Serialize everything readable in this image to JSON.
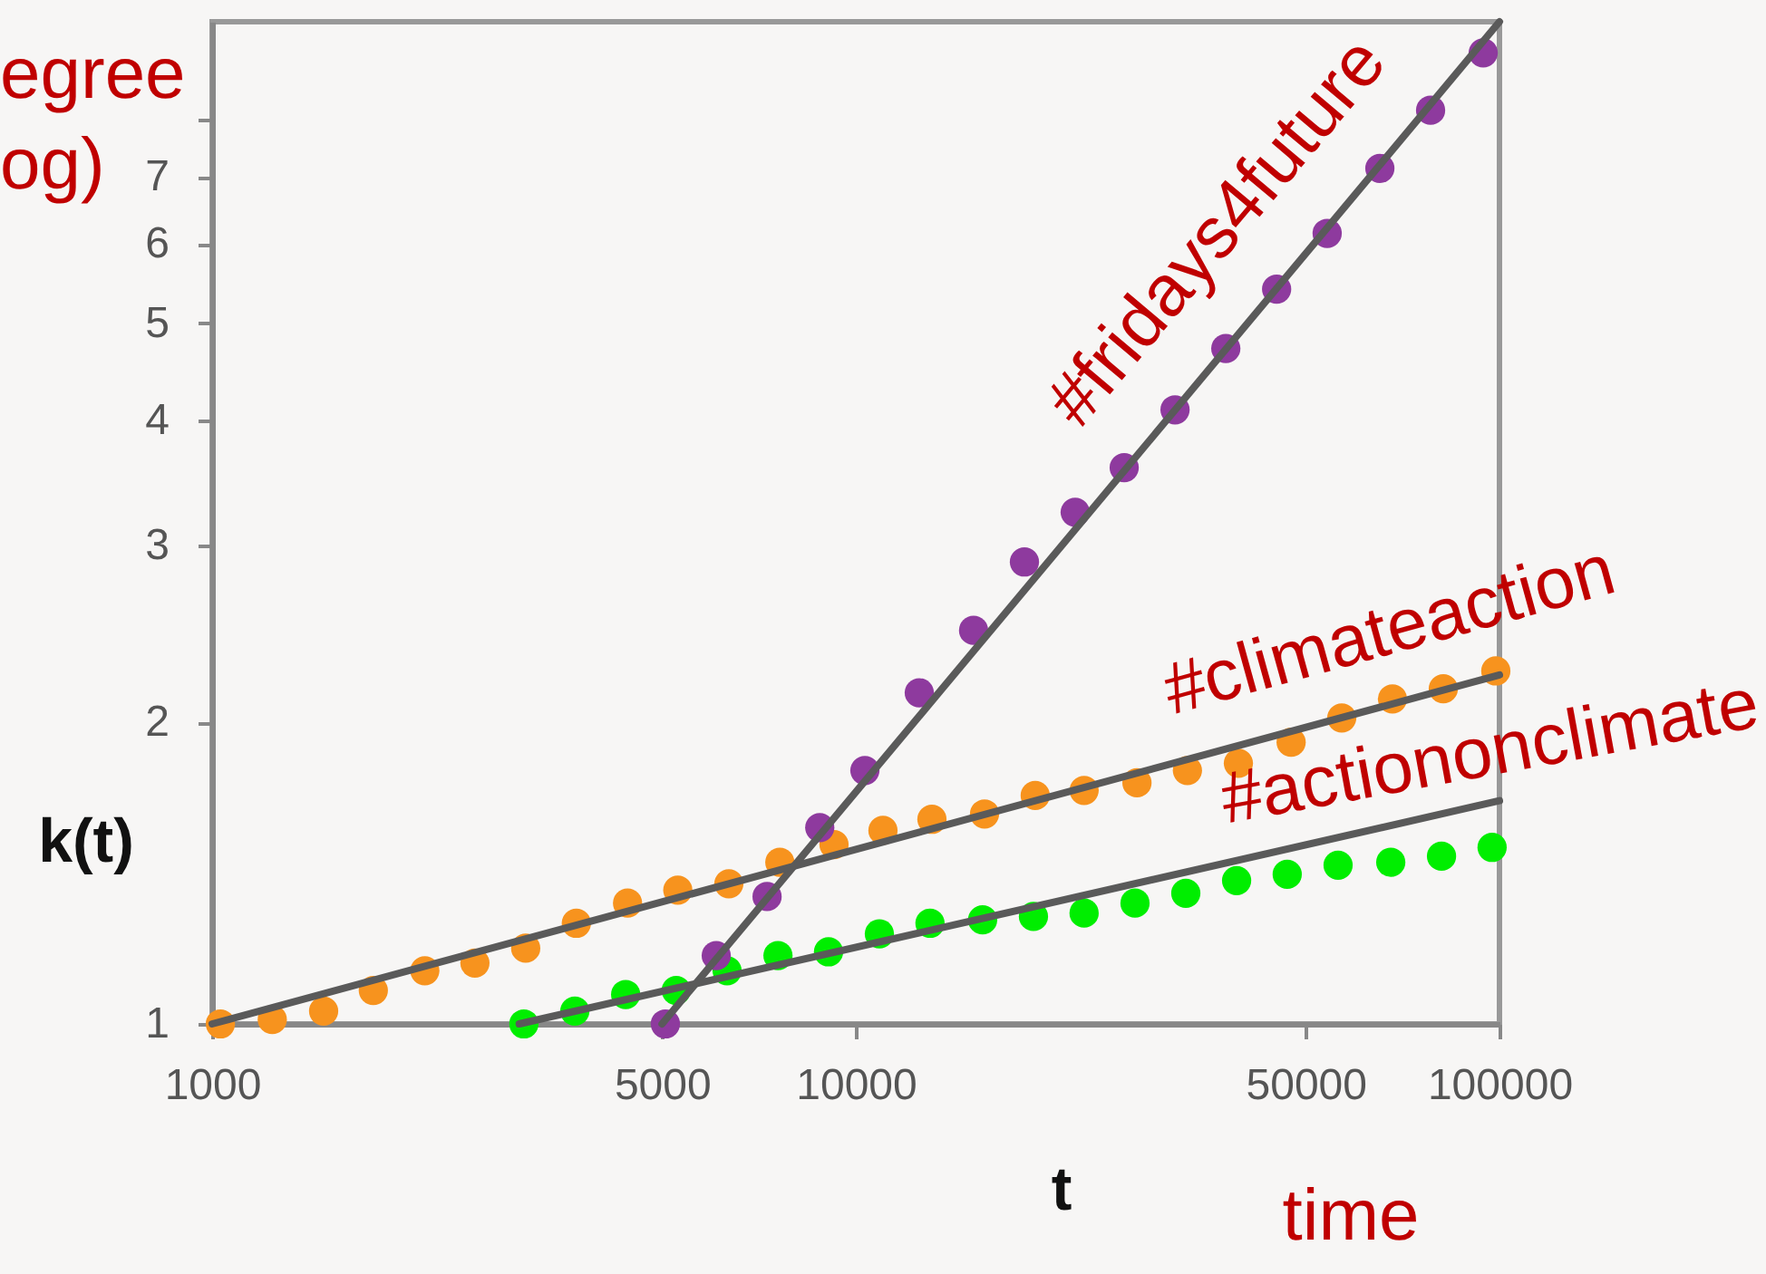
{
  "chart_data": {
    "type": "scatter",
    "xlabel": "t",
    "ylabel": "k(t)",
    "annotations": [
      "egree",
      "og)",
      "time"
    ],
    "log": "xy",
    "xlim": [
      1000,
      100000
    ],
    "ylim": [
      1,
      10
    ],
    "xticks": [
      1000,
      5000,
      10000,
      50000,
      100000
    ],
    "yticks": [
      1,
      2,
      3,
      4,
      5,
      6,
      7,
      {
        "value": 8,
        "label": null
      }
    ],
    "grid": false,
    "series": [
      {
        "name": "#fridays4future",
        "marker": "circle",
        "color": "#8e3a9e",
        "x": [
          5060,
          6070,
          7280,
          8790,
          10330,
          12550,
          15240,
          18280,
          21920,
          26120,
          31330,
          37570,
          45060,
          53990,
          65190,
          78160,
          94350
        ],
        "values": [
          1.0,
          1.17,
          1.34,
          1.57,
          1.79,
          2.14,
          2.47,
          2.89,
          3.24,
          3.59,
          4.1,
          4.72,
          5.41,
          6.15,
          7.14,
          8.16,
          9.31
        ]
      },
      {
        "name": "#climateaction",
        "marker": "circle",
        "color": "#f7931e",
        "x": [
          1030,
          1240,
          1490,
          1780,
          2140,
          2560,
          3070,
          3680,
          4420,
          5290,
          6350,
          7620,
          9250,
          11020,
          13130,
          15850,
          19000,
          22630,
          27340,
          32750,
          39300,
          47460,
          56880,
          68200,
          81800,
          98700
        ],
        "values": [
          1.0,
          1.01,
          1.03,
          1.08,
          1.13,
          1.15,
          1.19,
          1.26,
          1.32,
          1.36,
          1.38,
          1.45,
          1.51,
          1.56,
          1.6,
          1.62,
          1.69,
          1.71,
          1.74,
          1.79,
          1.82,
          1.91,
          2.02,
          2.11,
          2.16,
          2.25
        ]
      },
      {
        "name": "#actiononclimate",
        "marker": "circle",
        "color": "#00ee00",
        "x": [
          3050,
          3660,
          4390,
          5260,
          6310,
          7570,
          9070,
          10880,
          13040,
          15740,
          18880,
          22630,
          27150,
          32560,
          39050,
          46800,
          56140,
          67780,
          81280,
          97400
        ],
        "values": [
          1.0,
          1.03,
          1.07,
          1.08,
          1.13,
          1.17,
          1.18,
          1.23,
          1.26,
          1.27,
          1.28,
          1.29,
          1.32,
          1.35,
          1.39,
          1.41,
          1.44,
          1.45,
          1.47,
          1.5
        ]
      },
      {
        "type": "line",
        "marker": "none",
        "color": "#5a5a5a",
        "x": [
          5000,
          100000
        ],
        "values": [
          1,
          10
        ]
      },
      {
        "type": "line",
        "marker": "none",
        "color": "#5a5a5a",
        "x": [
          1000,
          100000
        ],
        "values": [
          1,
          2.23
        ]
      },
      {
        "type": "line",
        "marker": "none",
        "color": "#5a5a5a",
        "x": [
          3000,
          100000
        ],
        "values": [
          1,
          1.67
        ]
      }
    ]
  }
}
